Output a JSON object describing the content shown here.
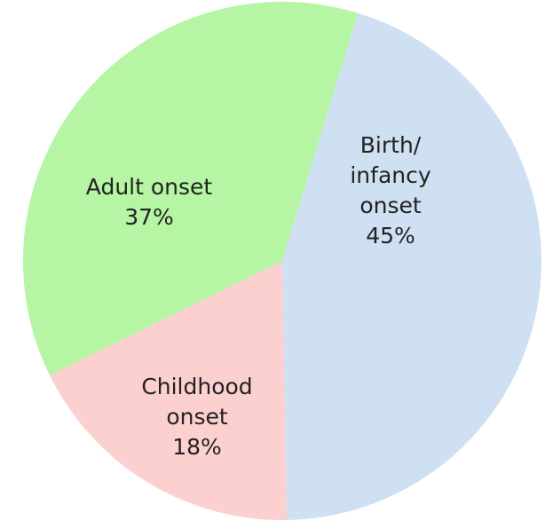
{
  "chart_data": {
    "type": "pie",
    "categories": [
      "Birth/\ninfancy\nonset",
      "Childhood\nonset",
      "Adult onset"
    ],
    "values": [
      45,
      18,
      37
    ],
    "value_labels": [
      "45%",
      "18%",
      "37%"
    ],
    "colors": [
      "#cfe0f3",
      "#fdd0d0",
      "#b5f5a3"
    ]
  }
}
